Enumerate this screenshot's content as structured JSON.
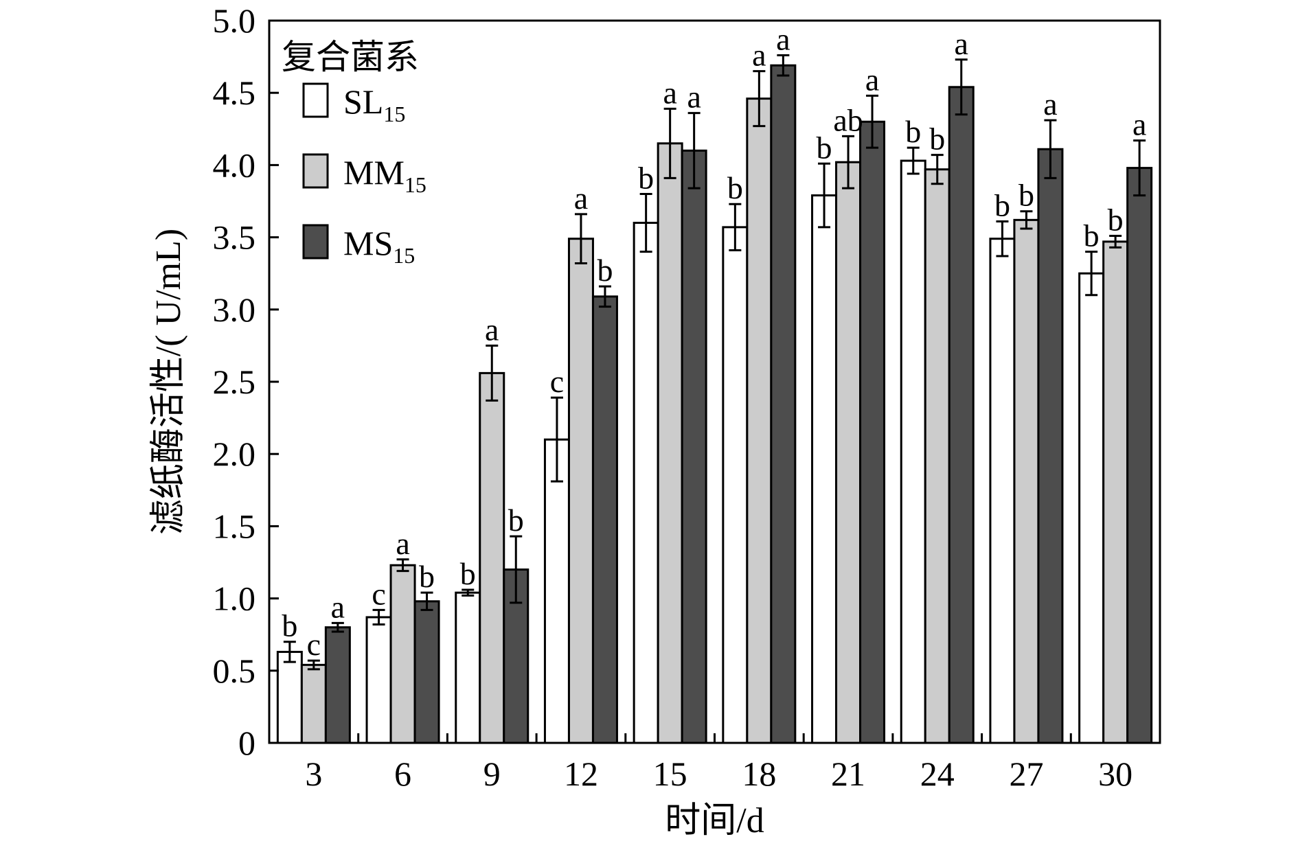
{
  "chart_data": {
    "type": "bar",
    "xlabel": "时间/d",
    "ylabel": "滤纸酶活性/( U/mL)",
    "ylim": [
      0,
      5.0
    ],
    "yticks": [
      0,
      0.5,
      1.0,
      1.5,
      2.0,
      2.5,
      3.0,
      3.5,
      4.0,
      4.5,
      5.0
    ],
    "ytick_labels": [
      "0",
      "0.5",
      "1.0",
      "1.5",
      "2.0",
      "2.5",
      "3.0",
      "3.5",
      "4.0",
      "4.5",
      "5.0"
    ],
    "categories": [
      "3",
      "6",
      "9",
      "12",
      "15",
      "18",
      "21",
      "24",
      "27",
      "30"
    ],
    "legend": {
      "title": "复合菌系",
      "position": "top-left"
    },
    "series": [
      {
        "name": "SL15",
        "label_main": "SL",
        "label_sub": "15",
        "color": "#ffffff",
        "values": [
          0.63,
          0.87,
          1.04,
          2.1,
          3.6,
          3.57,
          3.79,
          4.03,
          3.49,
          3.25
        ],
        "errors": [
          0.07,
          0.05,
          0.02,
          0.29,
          0.2,
          0.16,
          0.22,
          0.09,
          0.12,
          0.15
        ],
        "sig": [
          "b",
          "c",
          "b",
          "c",
          "b",
          "b",
          "b",
          "b",
          "b",
          "b"
        ]
      },
      {
        "name": "MM15",
        "label_main": "MM",
        "label_sub": "15",
        "color": "#cccccc",
        "values": [
          0.54,
          1.23,
          2.56,
          3.49,
          4.15,
          4.46,
          4.02,
          3.97,
          3.62,
          3.47
        ],
        "errors": [
          0.03,
          0.04,
          0.19,
          0.17,
          0.24,
          0.19,
          0.18,
          0.1,
          0.06,
          0.04
        ],
        "sig": [
          "c",
          "a",
          "a",
          "a",
          "a",
          "a",
          "ab",
          "b",
          "b",
          "b"
        ]
      },
      {
        "name": "MS15",
        "label_main": "MS",
        "label_sub": "15",
        "color": "#4d4d4d",
        "values": [
          0.8,
          0.98,
          1.2,
          3.09,
          4.1,
          4.69,
          4.3,
          4.54,
          4.11,
          3.98
        ],
        "errors": [
          0.03,
          0.06,
          0.23,
          0.07,
          0.26,
          0.07,
          0.18,
          0.19,
          0.2,
          0.19
        ],
        "sig": [
          "a",
          "b",
          "b",
          "b",
          "a",
          "a",
          "a",
          "a",
          "a",
          "a"
        ]
      }
    ]
  }
}
